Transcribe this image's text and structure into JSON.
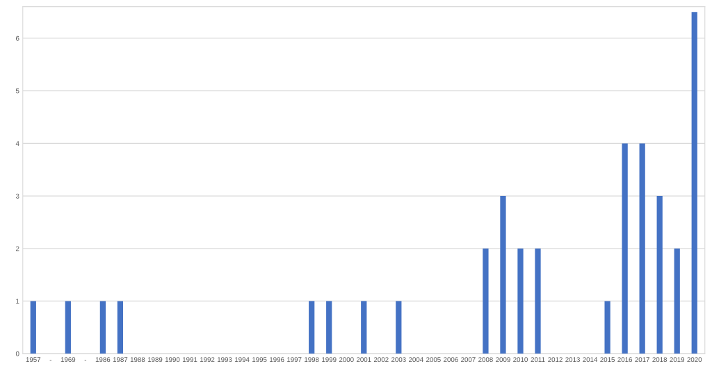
{
  "chart_data": {
    "type": "bar",
    "categories": [
      "1957",
      "-",
      "1969",
      "-",
      "1986",
      "1987",
      "1988",
      "1989",
      "1990",
      "1991",
      "1992",
      "1993",
      "1994",
      "1995",
      "1996",
      "1997",
      "1998",
      "1999",
      "2000",
      "2001",
      "2002",
      "2003",
      "2004",
      "2005",
      "2006",
      "2007",
      "2008",
      "2009",
      "2010",
      "2011",
      "2012",
      "2013",
      "2014",
      "2015",
      "2016",
      "2017",
      "2018",
      "2019",
      "2020"
    ],
    "values": [
      1,
      0,
      1,
      0,
      1,
      1,
      0,
      0,
      0,
      0,
      0,
      0,
      0,
      0,
      0,
      0,
      1,
      1,
      0,
      1,
      0,
      1,
      0,
      0,
      0,
      0,
      2,
      3,
      2,
      2,
      0,
      0,
      0,
      1,
      4,
      4,
      3,
      2,
      6.5
    ],
    "color": "#4472c4",
    "ylim": [
      0,
      6.6
    ],
    "yticks": [
      0,
      1,
      2,
      3,
      4,
      5,
      6
    ],
    "grid": "y"
  }
}
